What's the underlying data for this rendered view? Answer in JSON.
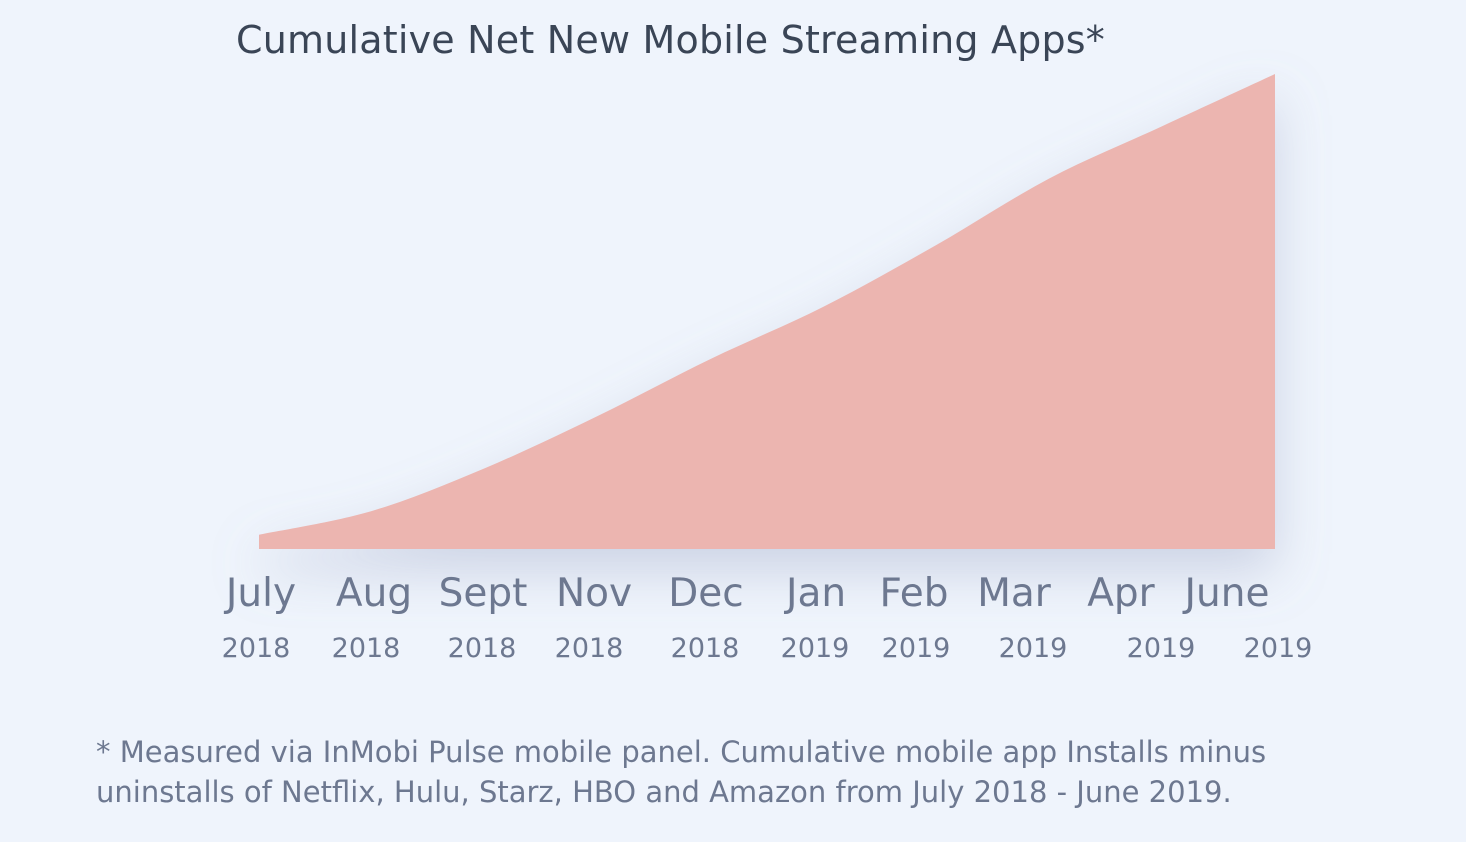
{
  "chart_data": {
    "type": "area",
    "title": "Cumulative Net New Mobile Streaming Apps*",
    "xlabel": "",
    "ylabel": "",
    "grid": false,
    "legend": "none",
    "fill_color": "#ecb5b0",
    "categories": [
      {
        "month": "July",
        "year": "2018"
      },
      {
        "month": "Aug",
        "year": "2018"
      },
      {
        "month": "Sept",
        "year": "2018"
      },
      {
        "month": "Nov",
        "year": "2018"
      },
      {
        "month": "Dec",
        "year": "2018"
      },
      {
        "month": "Jan",
        "year": "2019"
      },
      {
        "month": "Feb",
        "year": "2019"
      },
      {
        "month": "Mar",
        "year": "2019"
      },
      {
        "month": "Apr",
        "year": "2019"
      },
      {
        "month": "June",
        "year": "2019"
      }
    ],
    "series": [
      {
        "values": [
          3,
          8,
          17,
          28,
          40,
          51,
          64,
          78,
          89,
          100
        ]
      }
    ],
    "ylim": [
      0,
      100
    ]
  },
  "footnote": {
    "line1": "* Measured via InMobi Pulse mobile panel. Cumulative mobile app Installs minus",
    "line2": "uninstalls of Netflix, Hulu, Starz, HBO and Amazon from July 2018 - June 2019."
  }
}
